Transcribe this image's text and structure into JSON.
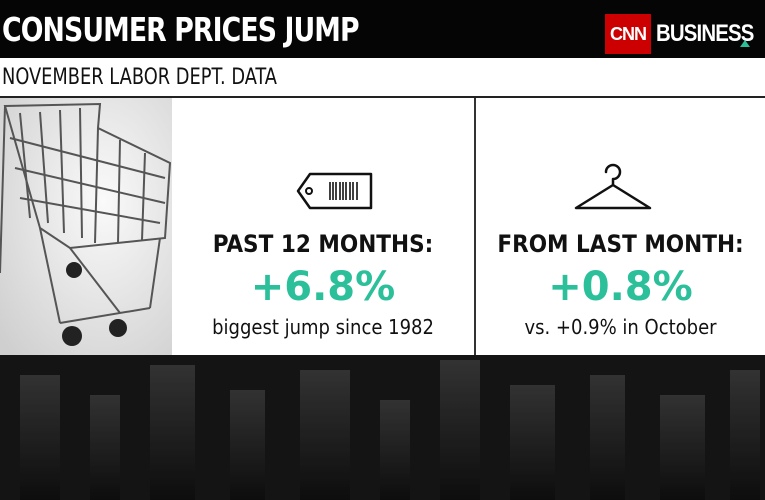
{
  "header": {
    "title": "CONSUMER PRICES JUMP",
    "subtitle": "NOVEMBER LABOR DEPT. DATA"
  },
  "logo": {
    "brand": "CNN",
    "section": "BUSINESS"
  },
  "panels": [
    {
      "label": "PAST 12 MONTHS:",
      "value": "+6.8%",
      "note": "biggest jump since 1982"
    },
    {
      "label": "FROM LAST MONTH:",
      "value": "+0.8%",
      "note": "vs. +0.9% in October"
    }
  ]
}
